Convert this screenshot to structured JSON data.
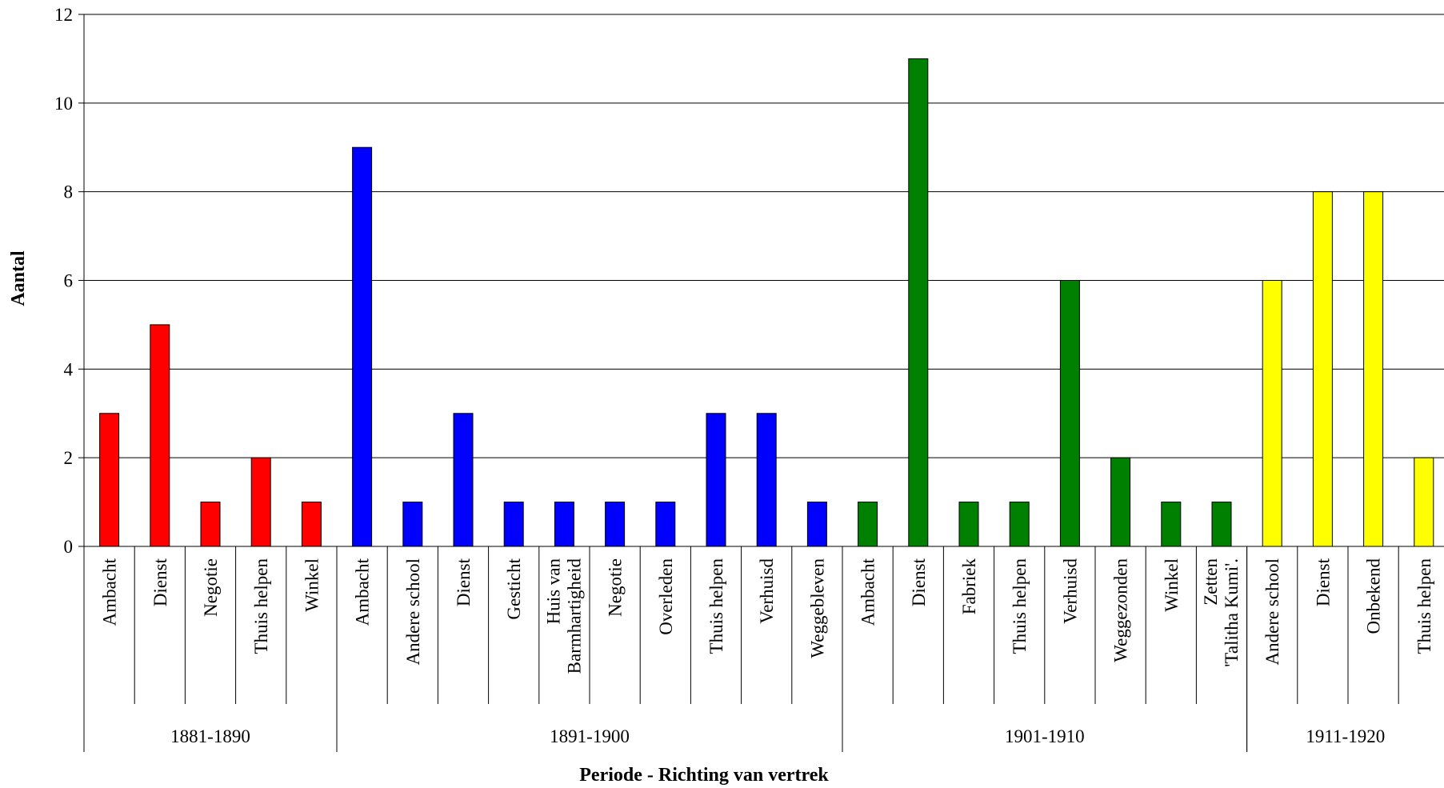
{
  "chart_data": {
    "type": "bar",
    "xlabel": "Periode - Richting van vertrek",
    "ylabel": "Aantal",
    "ylim": [
      0,
      12
    ],
    "yticks": [
      0,
      2,
      4,
      6,
      8,
      10,
      12
    ],
    "grid": true,
    "legend": "none",
    "groups": [
      {
        "name": "1881-1890",
        "color": "#ff0000",
        "categories": [
          "Ambacht",
          "Dienst",
          "Negotie",
          "Thuis helpen",
          "Winkel"
        ],
        "values": [
          3,
          5,
          1,
          2,
          1
        ]
      },
      {
        "name": "1891-1900",
        "color": "#0000ff",
        "categories": [
          "Ambacht",
          "Andere school",
          "Dienst",
          "Gesticht",
          "Huis van Barmhartigheid",
          "Negotie",
          "Overleden",
          "Thuis helpen",
          "Verhuisd",
          "Weggebleven"
        ],
        "values": [
          9,
          1,
          3,
          1,
          1,
          1,
          1,
          3,
          3,
          1
        ]
      },
      {
        "name": "1901-1910",
        "color": "#008000",
        "categories": [
          "Ambacht",
          "Dienst",
          "Fabriek",
          "Thuis helpen",
          "Verhuisd",
          "Weggezonden",
          "Winkel",
          "Zetten 'Talitha Kumi'."
        ],
        "values": [
          1,
          11,
          1,
          1,
          6,
          2,
          1,
          1
        ]
      },
      {
        "name": "1911-1920",
        "color": "#ffff00",
        "categories": [
          "Andere school",
          "Dienst",
          "Onbekend",
          "Thuis helpen"
        ],
        "values": [
          6,
          8,
          8,
          2
        ]
      }
    ]
  }
}
